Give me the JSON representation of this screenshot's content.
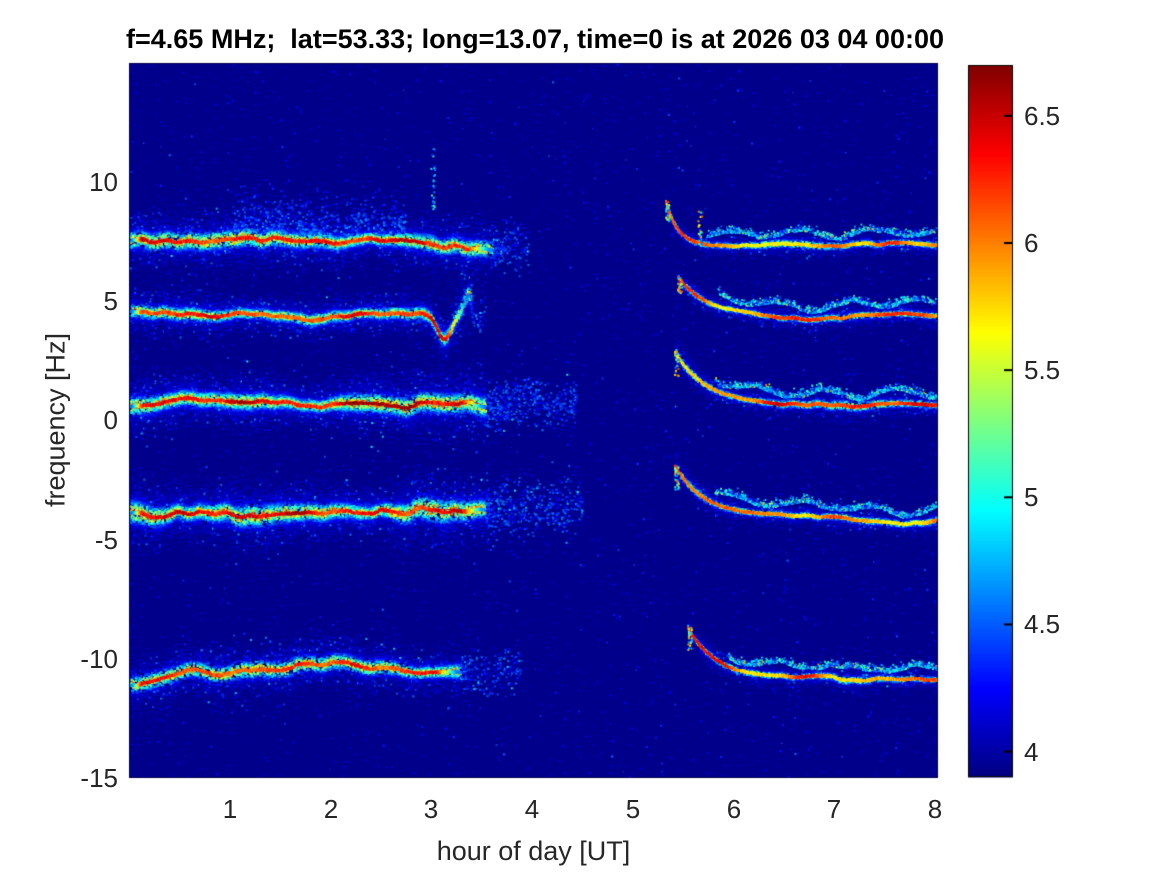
{
  "chart_data": {
    "type": "heatmap",
    "title": "f=4.65 MHz;  lat=53.33; long=13.07, time=0 is at 2026 03 04 00:00",
    "xlabel": "hour of day [UT]",
    "ylabel": "frequency [Hz]",
    "x_range": [
      0,
      8.03
    ],
    "y_range": [
      -15,
      15
    ],
    "x_ticks": [
      "1",
      "2",
      "3",
      "4",
      "5",
      "6",
      "7",
      "8"
    ],
    "y_ticks": [
      "10",
      "5",
      "0",
      "-5",
      "-10",
      "-15"
    ],
    "colormap": "jet",
    "grid": false,
    "background_value": 3.93,
    "colorbar": {
      "vmin": 3.9,
      "vmax": 6.7,
      "ticks": [
        "6.5",
        "6",
        "5.5",
        "5",
        "4.5",
        "4"
      ]
    },
    "bands": [
      {
        "id": "trace-p7.4Hz-pre-gap",
        "type": "flat",
        "f": 7.4,
        "x0": 0.02,
        "x1": 3.62,
        "amp": 0.2,
        "spread": 0.55,
        "peak": 6.55,
        "density": 1800,
        "tail": 0.35,
        "plume": {
          "x0": 1.05,
          "x1": 2.75,
          "height": 1.7,
          "density": 650
        }
      },
      {
        "id": "trace-p4.4Hz-pre-gap",
        "type": "flat",
        "f": 4.45,
        "x0": 0.02,
        "x1": 3.4,
        "amp": 0.2,
        "spread": 0.5,
        "peak": 6.5,
        "density": 1500,
        "tail": 0.15,
        "end_dip": {
          "x": 3.13,
          "depth": 1.15,
          "width": 0.1,
          "hook": 0.8
        }
      },
      {
        "id": "trace-p0.7Hz-pre-gap",
        "type": "flat",
        "f": 0.75,
        "x0": 0.02,
        "x1": 3.55,
        "amp": 0.24,
        "spread": 0.6,
        "peak": 6.65,
        "density": 2100,
        "tail": 0.9
      },
      {
        "id": "trace-m4.0Hz-pre-gap",
        "type": "flat",
        "f": -3.95,
        "x0": 0.02,
        "x1": 3.55,
        "amp": 0.28,
        "spread": 0.72,
        "peak": 6.65,
        "density": 2100,
        "tail": 0.95
      },
      {
        "id": "trace-m10.7Hz-pre-gap",
        "type": "flat",
        "f": -10.65,
        "x0": 0.02,
        "x1": 3.3,
        "amp": 0.26,
        "spread": 0.5,
        "peak": 6.45,
        "density": 1400,
        "tail": 0.6
      },
      {
        "id": "trace-p7.4Hz-post-gap",
        "type": "decay",
        "f_start": 9.2,
        "f": 7.32,
        "x0": 5.33,
        "x1": 8.02,
        "tau": 0.12,
        "amp": 0.12,
        "spread": 0.22,
        "peak": 6.3,
        "density": 700,
        "ripple": 0.5
      },
      {
        "id": "trace-p4.4Hz-post-gap",
        "type": "decay",
        "f_start": 6.0,
        "f": 4.4,
        "x0": 5.45,
        "x1": 8.02,
        "tau": 0.3,
        "amp": 0.12,
        "spread": 0.22,
        "peak": 6.35,
        "density": 700,
        "ripple": 0.55
      },
      {
        "id": "trace-p0.7Hz-post-gap",
        "type": "decay",
        "f_start": 2.9,
        "f": 0.6,
        "x0": 5.42,
        "x1": 8.02,
        "tau": 0.3,
        "amp": 0.14,
        "spread": 0.26,
        "peak": 6.5,
        "density": 800,
        "ripple": 0.5
      },
      {
        "id": "trace-m4.0Hz-post-gap",
        "type": "decay",
        "f_start": -1.9,
        "f": -4.15,
        "x0": 5.42,
        "x1": 8.02,
        "tau": 0.3,
        "amp": 0.14,
        "spread": 0.26,
        "peak": 6.5,
        "density": 800,
        "ripple": 0.5
      },
      {
        "id": "trace-m10.7Hz-post-gap",
        "type": "decay",
        "f_start": -8.7,
        "f": -10.85,
        "x0": 5.55,
        "x1": 8.02,
        "tau": 0.28,
        "amp": 0.12,
        "spread": 0.22,
        "peak": 6.4,
        "density": 700,
        "ripple": 0.45
      }
    ],
    "vertical_streaks": [
      {
        "x": 3.02,
        "f0": 8.8,
        "f1": 11.7,
        "peak": 5.2
      },
      {
        "x": 5.67,
        "f0": 7.2,
        "f1": 8.9,
        "peak": 6.1
      }
    ]
  }
}
